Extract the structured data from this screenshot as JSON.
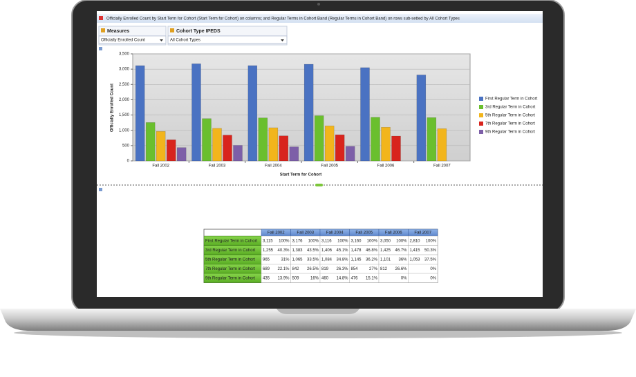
{
  "window": {
    "title": "Officially Enrolled Count by Start Term for Cohort (Start Term for Cohort) on columns; and Regular Terms in Cohort Band (Regular Terms in Cohort Band) on rows sub-setted by All Cohort Types"
  },
  "filters": [
    {
      "label": "Measures",
      "selected": "Officially Enrolled Count"
    },
    {
      "label": "Cohort Type IPEDS",
      "selected": "All Cohort Types"
    }
  ],
  "chart_data": {
    "type": "bar",
    "x_label": "Start Term for Cohort",
    "y_label": "Officially Enrolled Count",
    "categories": [
      "Fall 2002",
      "Fall 2003",
      "Fall 2004",
      "Fall 2005",
      "Fall 2006",
      "Fall 2007"
    ],
    "series": [
      {
        "name": "First Regular Term in Cohort",
        "color": "#4a72c2",
        "values": [
          3115,
          3176,
          3116,
          3160,
          3050,
          2810
        ]
      },
      {
        "name": "3rd Regular Term in Cohort",
        "color": "#6abf2e",
        "values": [
          1255,
          1383,
          1406,
          1478,
          1425,
          1415
        ]
      },
      {
        "name": "5th Regular Term in Cohort",
        "color": "#f2b51c",
        "values": [
          965,
          1065,
          1084,
          1145,
          1101,
          1053
        ]
      },
      {
        "name": "7th Regular Term in Cohort",
        "color": "#d8241d",
        "values": [
          689,
          842,
          819,
          854,
          812,
          null
        ]
      },
      {
        "name": "9th Regular Term in Cohort",
        "color": "#7d5fa8",
        "values": [
          435,
          509,
          460,
          476,
          null,
          null
        ]
      }
    ],
    "ylim": [
      0,
      3500
    ],
    "yticks": [
      0,
      500,
      {
        "value": 1000,
        "label": "1,000"
      },
      {
        "value": 1500,
        "label": "1,500"
      },
      {
        "value": 2000,
        "label": "2,000"
      },
      {
        "value": 2500,
        "label": "2,500"
      },
      {
        "value": 3000,
        "label": "3,000"
      },
      {
        "value": 3500,
        "label": "3,500"
      }
    ],
    "grid": true,
    "legend": "right"
  },
  "table": {
    "columns": [
      "Fall 2002",
      "Fall 2003",
      "Fall 2004",
      "Fall 2005",
      "Fall 2006",
      "Fall 2007"
    ],
    "rows": [
      {
        "label": "First Regular Term in Cohort",
        "cells": [
          [
            "3,115",
            "100%"
          ],
          [
            "3,176",
            "100%"
          ],
          [
            "3,116",
            "100%"
          ],
          [
            "3,160",
            "100%"
          ],
          [
            "3,050",
            "100%"
          ],
          [
            "2,810",
            "100%"
          ]
        ]
      },
      {
        "label": "3rd Regular Term in Cohort",
        "cells": [
          [
            "1,255",
            "40.3%"
          ],
          [
            "1,383",
            "43.5%"
          ],
          [
            "1,406",
            "45.1%"
          ],
          [
            "1,478",
            "46.8%"
          ],
          [
            "1,425",
            "46.7%"
          ],
          [
            "1,415",
            "50.3%"
          ]
        ]
      },
      {
        "label": "5th Regular Term in Cohort",
        "cells": [
          [
            "965",
            "31%"
          ],
          [
            "1,065",
            "33.5%"
          ],
          [
            "1,084",
            "34.8%"
          ],
          [
            "1,145",
            "36.2%"
          ],
          [
            "1,101",
            "36%"
          ],
          [
            "1,053",
            "37.5%"
          ]
        ]
      },
      {
        "label": "7th Regular Term in Cohort",
        "cells": [
          [
            "689",
            "22.1%"
          ],
          [
            "842",
            "26.5%"
          ],
          [
            "819",
            "26.3%"
          ],
          [
            "854",
            "27%"
          ],
          [
            "812",
            "26.6%"
          ],
          [
            null,
            "0%"
          ]
        ]
      },
      {
        "label": "9th Regular Term in Cohort",
        "cells": [
          [
            "435",
            "13.9%"
          ],
          [
            "509",
            "16%"
          ],
          [
            "460",
            "14.8%"
          ],
          [
            "476",
            "15.1%"
          ],
          [
            null,
            "0%"
          ],
          [
            null,
            "0%"
          ]
        ]
      }
    ]
  }
}
